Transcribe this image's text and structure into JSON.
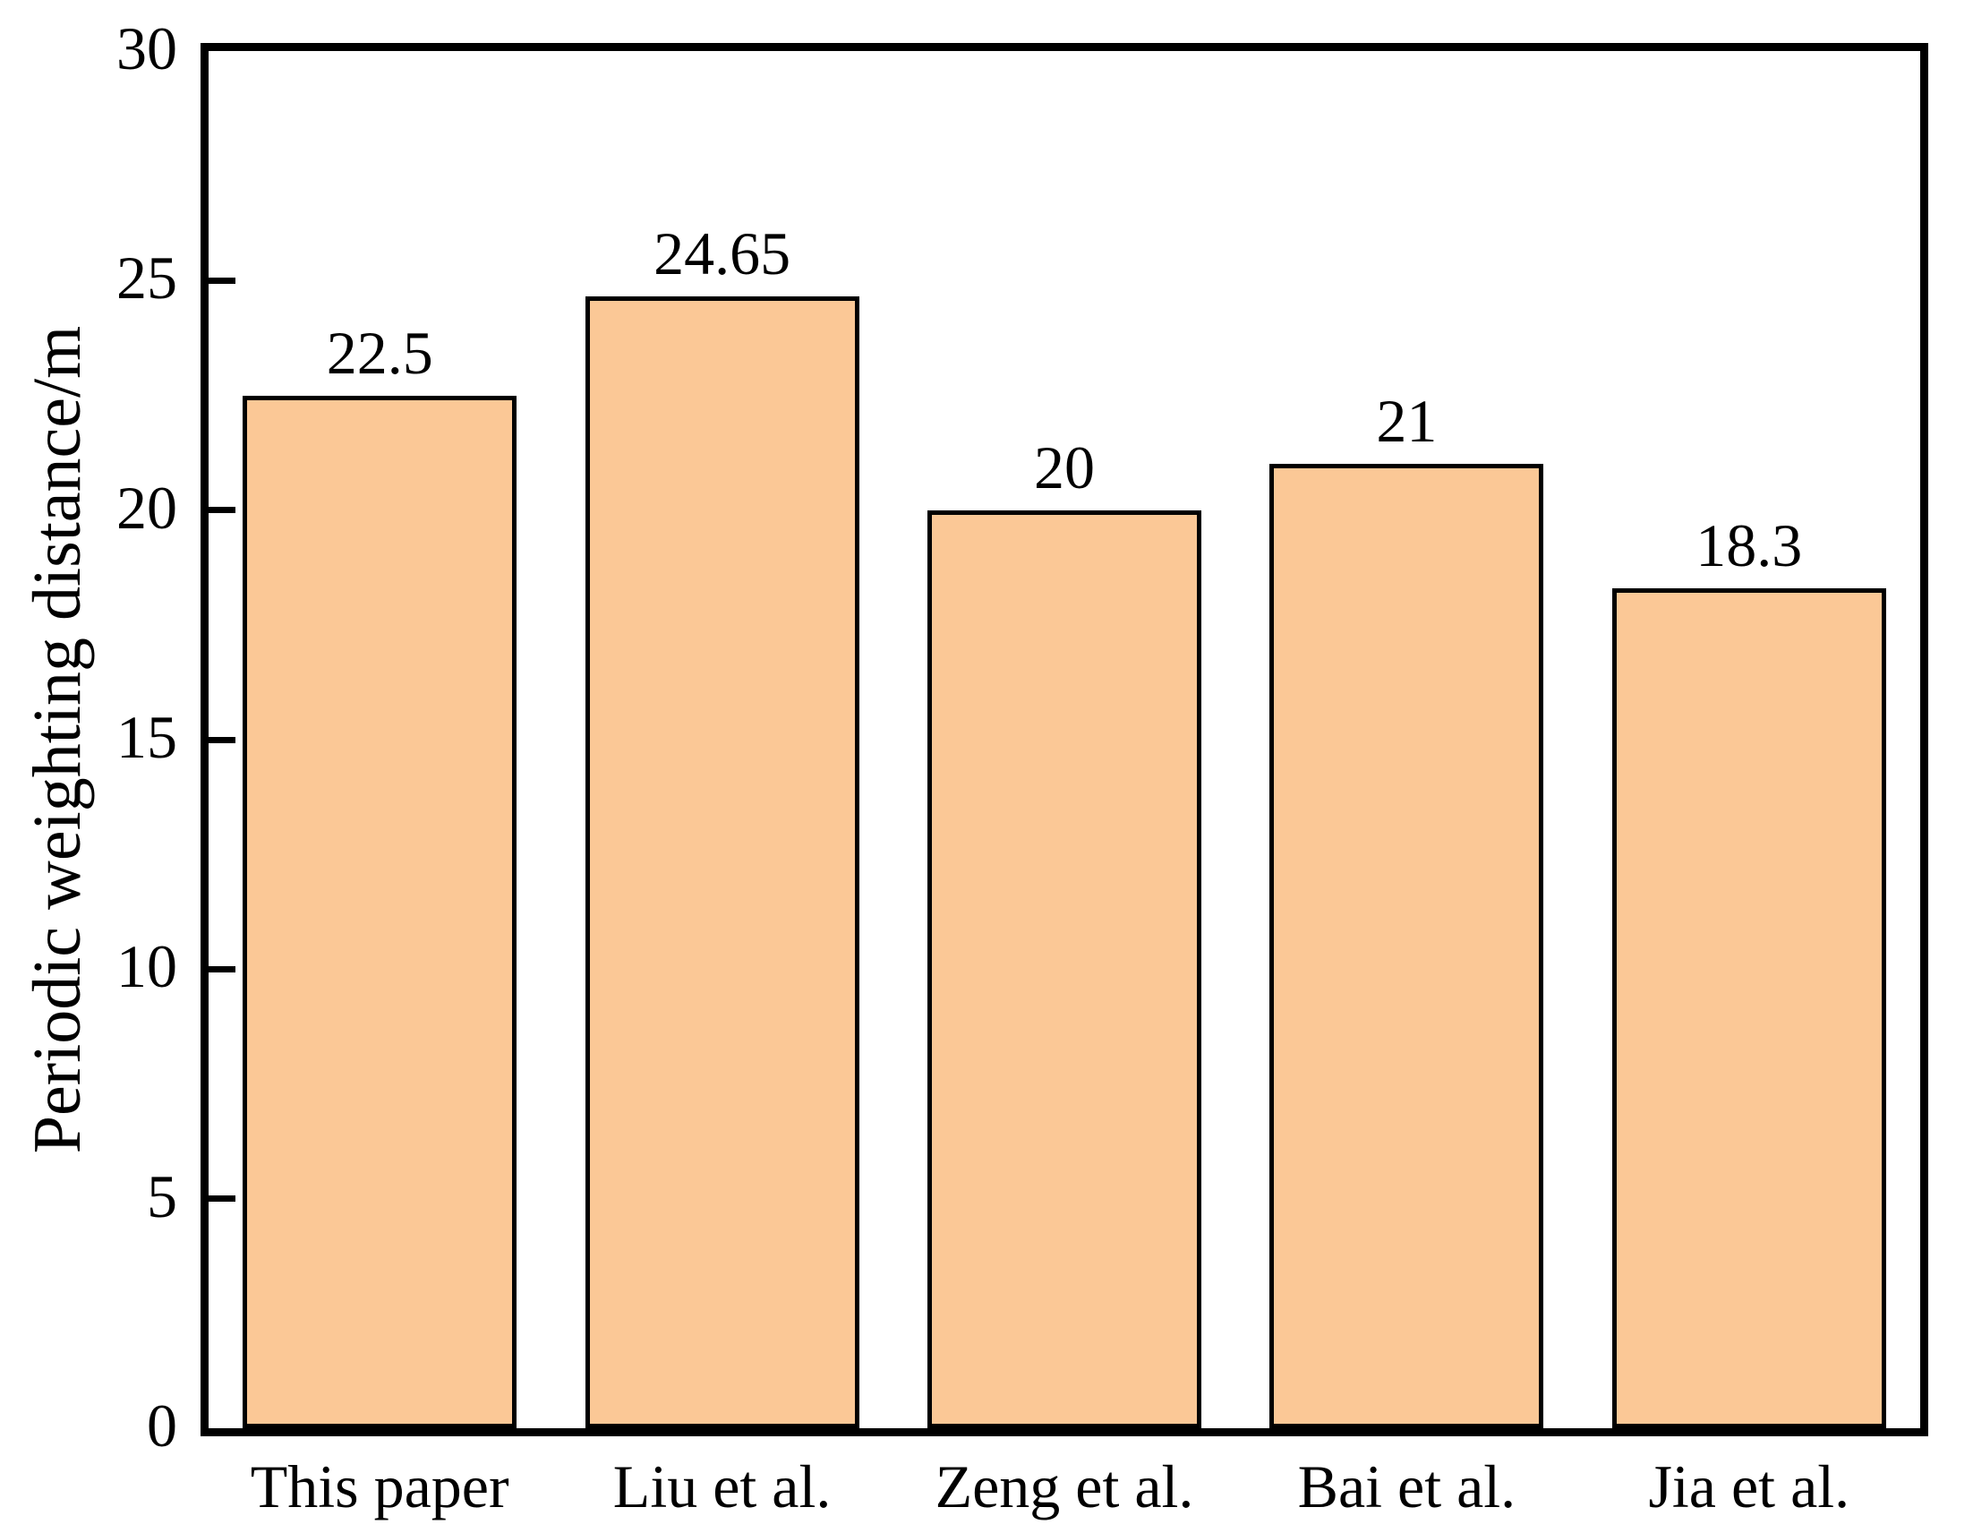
{
  "figure": {
    "background": "#ffffff",
    "axis_color": "#000000",
    "bar_fill": "#fbc896",
    "bar_edge": "#000000"
  },
  "chart_data": {
    "type": "bar",
    "title": "",
    "categories": [
      "This paper",
      "Liu et al.",
      "Zeng et al.",
      "Bai et al.",
      "Jia et al."
    ],
    "values": [
      22.5,
      24.65,
      20,
      21,
      18.3
    ],
    "bar_labels": [
      "22.5",
      "24.65",
      "20",
      "21",
      "18.3"
    ],
    "xlabel": "",
    "ylabel": "Periodic weighting distance/m",
    "ylim": [
      0,
      30
    ],
    "yticks": [
      0,
      5,
      10,
      15,
      20,
      25,
      30
    ],
    "grid": false,
    "legend": null,
    "bar_width_fraction": 0.8
  }
}
